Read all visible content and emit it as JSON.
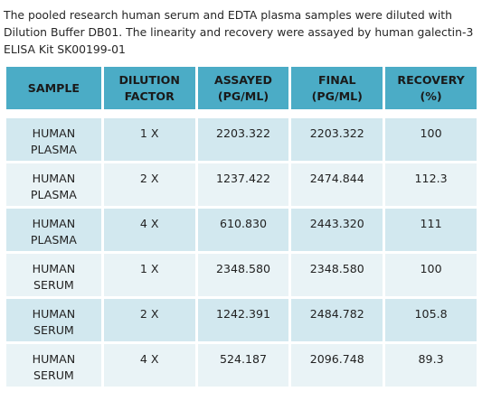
{
  "caption": "The pooled research human serum and EDTA plasma samples were diluted with Dilution Buffer DB01. The linearity and recovery were assayed by human galectin-3 ELISA Kit SK00199-01",
  "table": {
    "headers": {
      "sample": "SAMPLE",
      "dilution_line1": "DILUTION",
      "dilution_line2": "FACTOR",
      "assayed_line1": "ASSAYED",
      "assayed_line2": "(PG/ML)",
      "final_line1": "FINAL",
      "final_line2": "(PG/ML)",
      "recovery_line1": "RECOVERY",
      "recovery_line2": "(%)"
    },
    "rows": [
      {
        "sample_line1": "HUMAN",
        "sample_line2": "PLASMA",
        "dilution": "1 X",
        "assayed": "2203.322",
        "final": "2203.322",
        "recovery": "100"
      },
      {
        "sample_line1": "HUMAN",
        "sample_line2": "PLASMA",
        "dilution": "2  X",
        "assayed": "1237.422",
        "final": "2474.844",
        "recovery": "112.3"
      },
      {
        "sample_line1": "HUMAN",
        "sample_line2": "PLASMA",
        "dilution": "4  X",
        "assayed": "610.830",
        "final": "2443.320",
        "recovery": "111"
      },
      {
        "sample_line1": "HUMAN",
        "sample_line2": "SERUM",
        "dilution": "1  X",
        "assayed": "2348.580",
        "final": "2348.580",
        "recovery": "100"
      },
      {
        "sample_line1": "HUMAN",
        "sample_line2": "SERUM",
        "dilution": "2 X",
        "assayed": "1242.391",
        "final": "2484.782",
        "recovery": "105.8"
      },
      {
        "sample_line1": "HUMAN",
        "sample_line2": "SERUM",
        "dilution": "4 X",
        "assayed": "524.187",
        "final": "2096.748",
        "recovery": "89.3"
      }
    ]
  },
  "colors": {
    "header_bg": "#4bacc6",
    "row_dark": "#d2e8ef",
    "row_light": "#e9f3f6"
  }
}
